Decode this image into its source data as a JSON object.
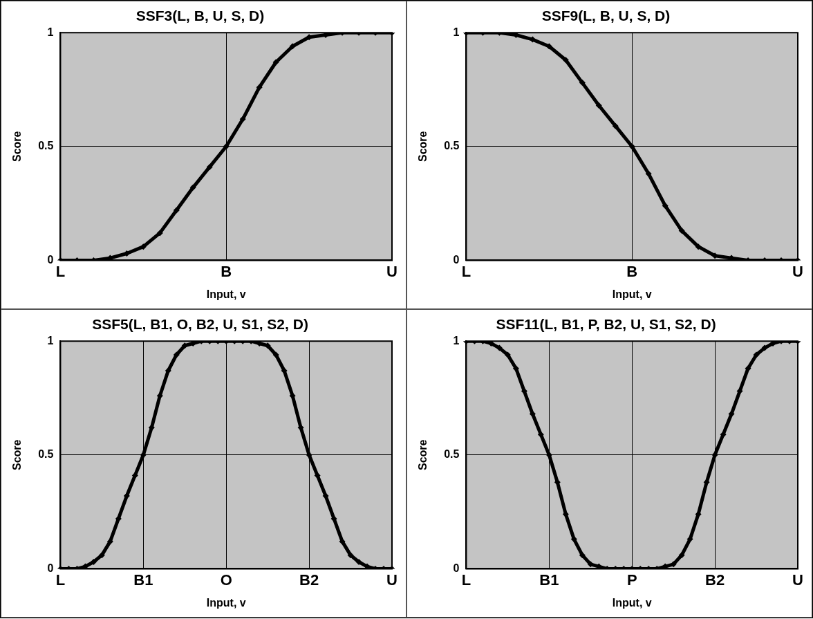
{
  "chart_data": [
    {
      "type": "line",
      "title": "SSF3(L, B, U, S, D)",
      "xlabel": "Input, v",
      "ylabel": "Score",
      "color": "#000000",
      "marker": "diamond",
      "grid": true,
      "categories": [
        "L",
        null,
        null,
        null,
        null,
        null,
        null,
        null,
        null,
        null,
        "B",
        null,
        null,
        null,
        null,
        null,
        null,
        null,
        null,
        null,
        "U"
      ],
      "values": [
        0,
        0,
        0,
        0.01,
        0.03,
        0.06,
        0.12,
        0.22,
        0.32,
        0.41,
        0.5,
        0.62,
        0.76,
        0.87,
        0.94,
        0.98,
        0.99,
        1,
        1,
        1,
        1
      ],
      "ylim": [
        0,
        1
      ],
      "yticks": [
        0,
        0.5,
        1
      ]
    },
    {
      "type": "line",
      "title": "SSF9(L, B, U, S, D)",
      "xlabel": "Input, v",
      "ylabel": "Score",
      "color": "#000000",
      "marker": "diamond",
      "grid": true,
      "categories": [
        "L",
        null,
        null,
        null,
        null,
        null,
        null,
        null,
        null,
        null,
        "B",
        null,
        null,
        null,
        null,
        null,
        null,
        null,
        null,
        null,
        "U"
      ],
      "values": [
        1,
        1,
        1,
        0.99,
        0.97,
        0.94,
        0.88,
        0.78,
        0.68,
        0.59,
        0.5,
        0.38,
        0.24,
        0.13,
        0.06,
        0.02,
        0.01,
        0,
        0,
        0,
        0
      ],
      "ylim": [
        0,
        1
      ],
      "yticks": [
        0,
        0.5,
        1
      ]
    },
    {
      "type": "line",
      "title": "SSF5(L, B1, O, B2, U, S1, S2, D)",
      "xlabel": "Input, v",
      "ylabel": "Score",
      "color": "#000000",
      "marker": "diamond",
      "grid": true,
      "categories": [
        "L",
        null,
        null,
        null,
        null,
        null,
        null,
        null,
        null,
        null,
        "B1",
        null,
        null,
        null,
        null,
        null,
        null,
        null,
        null,
        null,
        "O",
        null,
        null,
        null,
        null,
        null,
        null,
        null,
        null,
        null,
        "B2",
        null,
        null,
        null,
        null,
        null,
        null,
        null,
        null,
        null,
        "U"
      ],
      "values": [
        0,
        0,
        0,
        0.01,
        0.03,
        0.06,
        0.12,
        0.22,
        0.32,
        0.41,
        0.5,
        0.62,
        0.76,
        0.87,
        0.94,
        0.98,
        0.99,
        1,
        1,
        1,
        1,
        1,
        1,
        1,
        0.99,
        0.98,
        0.94,
        0.87,
        0.76,
        0.62,
        0.5,
        0.41,
        0.32,
        0.22,
        0.12,
        0.06,
        0.03,
        0.01,
        0,
        0,
        0
      ],
      "ylim": [
        0,
        1
      ],
      "yticks": [
        0,
        0.5,
        1
      ]
    },
    {
      "type": "line",
      "title": "SSF11(L, B1, P, B2, U, S1, S2, D)",
      "xlabel": "Input, v",
      "ylabel": "Score",
      "color": "#000000",
      "marker": "diamond",
      "grid": true,
      "categories": [
        "L",
        null,
        null,
        null,
        null,
        null,
        null,
        null,
        null,
        null,
        "B1",
        null,
        null,
        null,
        null,
        null,
        null,
        null,
        null,
        null,
        "P",
        null,
        null,
        null,
        null,
        null,
        null,
        null,
        null,
        null,
        "B2",
        null,
        null,
        null,
        null,
        null,
        null,
        null,
        null,
        null,
        "U"
      ],
      "values": [
        1,
        1,
        1,
        0.99,
        0.97,
        0.94,
        0.88,
        0.78,
        0.68,
        0.59,
        0.5,
        0.38,
        0.24,
        0.13,
        0.06,
        0.02,
        0.01,
        0,
        0,
        0,
        0,
        0,
        0,
        0,
        0.01,
        0.02,
        0.06,
        0.13,
        0.24,
        0.38,
        0.5,
        0.59,
        0.68,
        0.78,
        0.88,
        0.94,
        0.97,
        0.99,
        1,
        1,
        1
      ],
      "ylim": [
        0,
        1
      ],
      "yticks": [
        0,
        0.5,
        1
      ]
    }
  ]
}
